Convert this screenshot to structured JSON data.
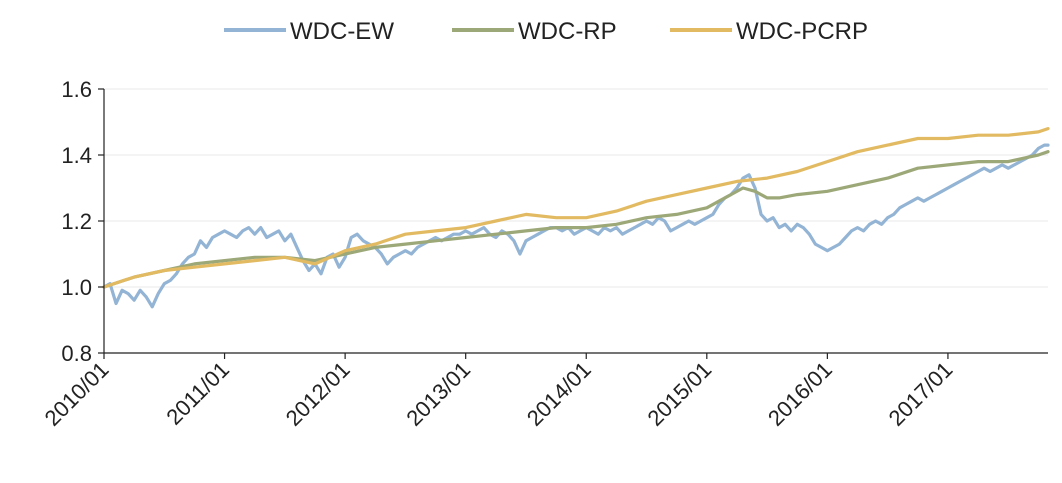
{
  "chart_data": {
    "type": "line",
    "title": "",
    "xlabel": "",
    "ylabel": "",
    "ylim": [
      0.8,
      1.6
    ],
    "yticks": [
      "0.8",
      "1.0",
      "1.2",
      "1.4",
      "1.6"
    ],
    "xlim": [
      2010.0,
      2017.83
    ],
    "xticks": [
      {
        "label": "2010/01",
        "x": 2010
      },
      {
        "label": "2011/01",
        "x": 2011
      },
      {
        "label": "2012/01",
        "x": 2012
      },
      {
        "label": "2013/01",
        "x": 2013
      },
      {
        "label": "2014/01",
        "x": 2014
      },
      {
        "label": "2015/01",
        "x": 2015
      },
      {
        "label": "2016/01",
        "x": 2016
      },
      {
        "label": "2017/01",
        "x": 2017
      }
    ],
    "grid": "horizontal",
    "legend": "top-center",
    "series": [
      {
        "name": "WDC-EW",
        "color": "#93B4D4",
        "x": [
          2010.0,
          2010.05,
          2010.1,
          2010.15,
          2010.2,
          2010.25,
          2010.3,
          2010.35,
          2010.4,
          2010.45,
          2010.5,
          2010.55,
          2010.6,
          2010.65,
          2010.7,
          2010.75,
          2010.8,
          2010.85,
          2010.9,
          2010.95,
          2011.0,
          2011.05,
          2011.1,
          2011.15,
          2011.2,
          2011.25,
          2011.3,
          2011.35,
          2011.4,
          2011.45,
          2011.5,
          2011.55,
          2011.6,
          2011.65,
          2011.7,
          2011.75,
          2011.8,
          2011.85,
          2011.9,
          2011.95,
          2012.0,
          2012.05,
          2012.1,
          2012.15,
          2012.2,
          2012.25,
          2012.3,
          2012.35,
          2012.4,
          2012.45,
          2012.5,
          2012.55,
          2012.6,
          2012.65,
          2012.7,
          2012.75,
          2012.8,
          2012.85,
          2012.9,
          2012.95,
          2013.0,
          2013.05,
          2013.1,
          2013.15,
          2013.2,
          2013.25,
          2013.3,
          2013.35,
          2013.4,
          2013.45,
          2013.5,
          2013.55,
          2013.6,
          2013.65,
          2013.7,
          2013.75,
          2013.8,
          2013.85,
          2013.9,
          2013.95,
          2014.0,
          2014.05,
          2014.1,
          2014.15,
          2014.2,
          2014.25,
          2014.3,
          2014.35,
          2014.4,
          2014.45,
          2014.5,
          2014.55,
          2014.6,
          2014.65,
          2014.7,
          2014.75,
          2014.8,
          2014.85,
          2014.9,
          2014.95,
          2015.0,
          2015.05,
          2015.1,
          2015.15,
          2015.2,
          2015.25,
          2015.3,
          2015.35,
          2015.4,
          2015.45,
          2015.5,
          2015.55,
          2015.6,
          2015.65,
          2015.7,
          2015.75,
          2015.8,
          2015.85,
          2015.9,
          2015.95,
          2016.0,
          2016.05,
          2016.1,
          2016.15,
          2016.2,
          2016.25,
          2016.3,
          2016.35,
          2016.4,
          2016.45,
          2016.5,
          2016.55,
          2016.6,
          2016.65,
          2016.7,
          2016.75,
          2016.8,
          2016.85,
          2016.9,
          2016.95,
          2017.0,
          2017.05,
          2017.1,
          2017.15,
          2017.2,
          2017.25,
          2017.3,
          2017.35,
          2017.4,
          2017.45,
          2017.5,
          2017.55,
          2017.6,
          2017.65,
          2017.7,
          2017.75,
          2017.8,
          2017.83
        ],
        "values": [
          1.0,
          1.01,
          0.95,
          0.99,
          0.98,
          0.96,
          0.99,
          0.97,
          0.94,
          0.98,
          1.01,
          1.02,
          1.04,
          1.07,
          1.09,
          1.1,
          1.14,
          1.12,
          1.15,
          1.16,
          1.17,
          1.16,
          1.15,
          1.17,
          1.18,
          1.16,
          1.18,
          1.15,
          1.16,
          1.17,
          1.14,
          1.16,
          1.12,
          1.08,
          1.05,
          1.07,
          1.04,
          1.09,
          1.1,
          1.06,
          1.09,
          1.15,
          1.16,
          1.14,
          1.13,
          1.12,
          1.1,
          1.07,
          1.09,
          1.1,
          1.11,
          1.1,
          1.12,
          1.13,
          1.14,
          1.15,
          1.14,
          1.15,
          1.16,
          1.16,
          1.17,
          1.16,
          1.17,
          1.18,
          1.16,
          1.15,
          1.17,
          1.16,
          1.14,
          1.1,
          1.14,
          1.15,
          1.16,
          1.17,
          1.18,
          1.18,
          1.17,
          1.18,
          1.16,
          1.17,
          1.18,
          1.17,
          1.16,
          1.18,
          1.17,
          1.18,
          1.16,
          1.17,
          1.18,
          1.19,
          1.2,
          1.19,
          1.21,
          1.2,
          1.17,
          1.18,
          1.19,
          1.2,
          1.19,
          1.2,
          1.21,
          1.22,
          1.25,
          1.27,
          1.28,
          1.3,
          1.33,
          1.34,
          1.3,
          1.22,
          1.2,
          1.21,
          1.18,
          1.19,
          1.17,
          1.19,
          1.18,
          1.16,
          1.13,
          1.12,
          1.11,
          1.12,
          1.13,
          1.15,
          1.17,
          1.18,
          1.17,
          1.19,
          1.2,
          1.19,
          1.21,
          1.22,
          1.24,
          1.25,
          1.26,
          1.27,
          1.26,
          1.27,
          1.28,
          1.29,
          1.3,
          1.31,
          1.32,
          1.33,
          1.34,
          1.35,
          1.36,
          1.35,
          1.36,
          1.37,
          1.36,
          1.37,
          1.38,
          1.39,
          1.4,
          1.42,
          1.43,
          1.43
        ]
      },
      {
        "name": "WDC-RP",
        "color": "#9DA878",
        "x": [
          2010.0,
          2010.25,
          2010.5,
          2010.75,
          2011.0,
          2011.25,
          2011.5,
          2011.75,
          2012.0,
          2012.25,
          2012.5,
          2012.75,
          2013.0,
          2013.25,
          2013.5,
          2013.75,
          2014.0,
          2014.25,
          2014.5,
          2014.75,
          2015.0,
          2015.1,
          2015.2,
          2015.3,
          2015.4,
          2015.5,
          2015.6,
          2015.75,
          2016.0,
          2016.25,
          2016.5,
          2016.75,
          2017.0,
          2017.25,
          2017.5,
          2017.75,
          2017.83
        ],
        "values": [
          1.0,
          1.03,
          1.05,
          1.07,
          1.08,
          1.09,
          1.09,
          1.08,
          1.1,
          1.12,
          1.13,
          1.14,
          1.15,
          1.16,
          1.17,
          1.18,
          1.18,
          1.19,
          1.21,
          1.22,
          1.24,
          1.26,
          1.28,
          1.3,
          1.29,
          1.27,
          1.27,
          1.28,
          1.29,
          1.31,
          1.33,
          1.36,
          1.37,
          1.38,
          1.38,
          1.4,
          1.41
        ]
      },
      {
        "name": "WDC-PCRP",
        "color": "#E2BA62",
        "x": [
          2010.0,
          2010.25,
          2010.5,
          2010.75,
          2011.0,
          2011.25,
          2011.5,
          2011.75,
          2012.0,
          2012.25,
          2012.5,
          2012.75,
          2013.0,
          2013.25,
          2013.5,
          2013.75,
          2014.0,
          2014.25,
          2014.5,
          2014.75,
          2015.0,
          2015.25,
          2015.5,
          2015.75,
          2016.0,
          2016.25,
          2016.5,
          2016.75,
          2017.0,
          2017.25,
          2017.5,
          2017.75,
          2017.83
        ],
        "values": [
          1.0,
          1.03,
          1.05,
          1.06,
          1.07,
          1.08,
          1.09,
          1.07,
          1.11,
          1.13,
          1.16,
          1.17,
          1.18,
          1.2,
          1.22,
          1.21,
          1.21,
          1.23,
          1.26,
          1.28,
          1.3,
          1.32,
          1.33,
          1.35,
          1.38,
          1.41,
          1.43,
          1.45,
          1.45,
          1.46,
          1.46,
          1.47,
          1.48
        ]
      }
    ]
  }
}
